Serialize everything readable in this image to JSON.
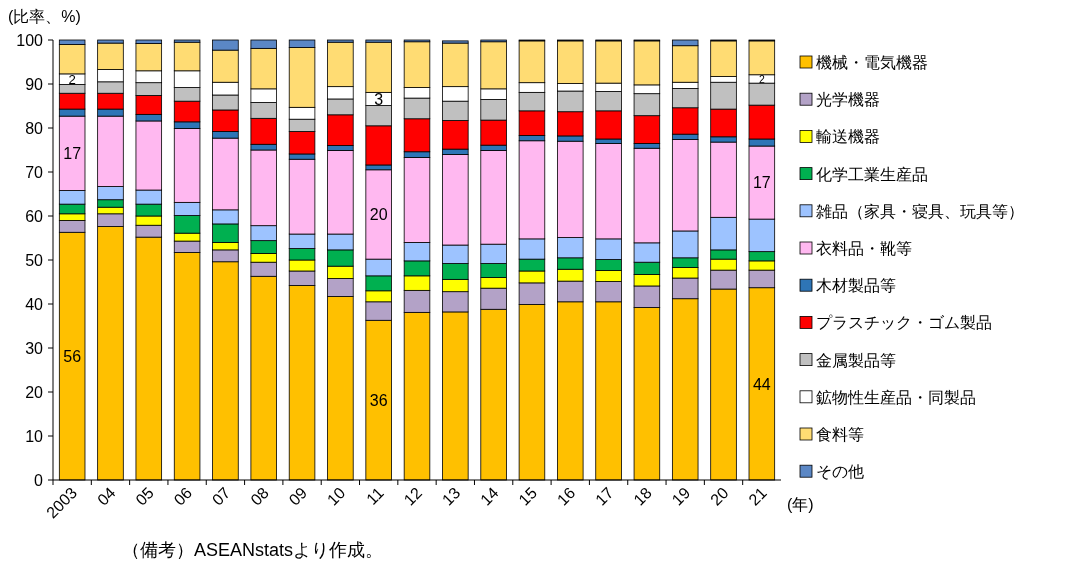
{
  "chart_data": {
    "type": "bar",
    "stacked": true,
    "ylabel": "(比率、%)",
    "xlabel": "(年)",
    "annotations": [
      "（備考）ASEANstatsより作成。"
    ],
    "legend": "right",
    "ylim": [
      0,
      100
    ],
    "yticks": [
      0,
      10,
      20,
      30,
      40,
      50,
      60,
      70,
      80,
      90,
      100
    ],
    "categories": [
      "2003",
      "04",
      "05",
      "06",
      "07",
      "08",
      "09",
      "10",
      "11",
      "12",
      "13",
      "14",
      "15",
      "16",
      "17",
      "18",
      "19",
      "20",
      "21"
    ],
    "series": [
      {
        "name": "機械・電気機器",
        "color": "#ffc000",
        "values": [
          56.3,
          57.6,
          55.2,
          51.7,
          49.6,
          46.3,
          44.2,
          41.7,
          36.3,
          38.1,
          38.2,
          38.8,
          39.9,
          40.5,
          40.5,
          39.2,
          41.2,
          43.4,
          43.7
        ],
        "value_labels": [
          "56",
          null,
          null,
          null,
          null,
          null,
          null,
          null,
          "36",
          null,
          null,
          null,
          null,
          null,
          null,
          null,
          null,
          null,
          "44"
        ]
      },
      {
        "name": "光学機器",
        "color": "#b3a2c7",
        "values": [
          2.7,
          2.9,
          2.7,
          2.6,
          2.7,
          3.2,
          3.3,
          4.1,
          4.2,
          5.0,
          4.6,
          4.8,
          4.9,
          4.7,
          4.6,
          4.9,
          4.7,
          4.3,
          4.0
        ]
      },
      {
        "name": "輸送機器",
        "color": "#ffff00",
        "values": [
          1.5,
          1.5,
          2.1,
          1.8,
          1.7,
          2.0,
          2.5,
          2.8,
          2.5,
          3.3,
          2.8,
          2.4,
          2.7,
          2.7,
          2.5,
          2.6,
          2.4,
          2.5,
          2.1
        ]
      },
      {
        "name": "化学工業生産品",
        "color": "#00b050",
        "values": [
          2.2,
          1.7,
          2.7,
          4.0,
          4.2,
          2.9,
          2.6,
          3.7,
          3.4,
          3.4,
          3.6,
          3.2,
          2.7,
          2.6,
          2.5,
          2.8,
          2.2,
          2.1,
          2.1
        ]
      },
      {
        "name": "雑品（家具・寝具、玩具等）",
        "color": "#9dc3ff",
        "values": [
          3.1,
          3.0,
          3.2,
          3.0,
          3.2,
          3.4,
          3.3,
          3.6,
          3.8,
          4.2,
          4.2,
          4.4,
          4.6,
          4.6,
          4.7,
          4.4,
          6.1,
          7.4,
          7.4
        ]
      },
      {
        "name": "衣料品・靴等",
        "color": "#ffb8f0",
        "values": [
          16.9,
          16.0,
          15.7,
          16.8,
          16.3,
          17.2,
          17.0,
          19.0,
          20.3,
          19.3,
          20.6,
          21.3,
          22.3,
          21.9,
          21.7,
          21.5,
          20.8,
          17.1,
          16.6
        ],
        "value_labels": [
          "17",
          null,
          null,
          null,
          null,
          null,
          null,
          null,
          "20",
          null,
          null,
          null,
          null,
          null,
          null,
          null,
          null,
          null,
          "17"
        ]
      },
      {
        "name": "木材製品等",
        "color": "#2e75b6",
        "values": [
          1.6,
          1.6,
          1.5,
          1.5,
          1.5,
          1.3,
          1.2,
          1.1,
          1.1,
          1.3,
          1.2,
          1.2,
          1.2,
          1.2,
          1.0,
          1.1,
          1.2,
          1.2,
          1.6
        ]
      },
      {
        "name": "プラスチック・ゴム製品",
        "color": "#ff0000",
        "values": [
          3.6,
          3.6,
          4.3,
          4.7,
          4.9,
          5.9,
          5.1,
          7.0,
          8.9,
          7.5,
          6.5,
          5.7,
          5.6,
          5.5,
          6.4,
          6.3,
          6.0,
          6.3,
          7.7
        ]
      },
      {
        "name": "金属製品等",
        "color": "#c0c0c0",
        "values": [
          2.0,
          2.6,
          2.9,
          3.1,
          3.4,
          3.6,
          2.8,
          3.6,
          4.6,
          4.7,
          4.4,
          4.7,
          4.2,
          4.7,
          4.4,
          5.0,
          4.4,
          6.1,
          5.0
        ]
      },
      {
        "name": "鉱物性生産品・同製品",
        "color": "#ffffff",
        "values": [
          2.4,
          2.8,
          2.7,
          3.8,
          2.9,
          3.1,
          2.7,
          2.8,
          3.0,
          2.4,
          3.3,
          2.4,
          2.2,
          1.7,
          1.9,
          2.0,
          1.4,
          1.3,
          1.9
        ],
        "value_labels": [
          "2",
          null,
          null,
          null,
          null,
          null,
          null,
          null,
          "3",
          null,
          null,
          null,
          null,
          null,
          null,
          null,
          null,
          null,
          "2"
        ]
      },
      {
        "name": "食料等",
        "color": "#ffdc73",
        "values": [
          6.7,
          6.0,
          6.2,
          6.5,
          7.3,
          9.2,
          13.6,
          10.1,
          11.4,
          10.4,
          9.9,
          10.7,
          9.5,
          9.7,
          9.6,
          10.0,
          8.3,
          8.1,
          7.7
        ]
      },
      {
        "name": "その他",
        "color": "#5b87c5",
        "values": [
          1.0,
          0.7,
          0.8,
          0.5,
          2.3,
          1.9,
          1.7,
          0.5,
          0.5,
          0.4,
          0.5,
          0.4,
          0.2,
          0.2,
          0.2,
          0.2,
          1.3,
          0.2,
          0.2
        ]
      }
    ]
  }
}
